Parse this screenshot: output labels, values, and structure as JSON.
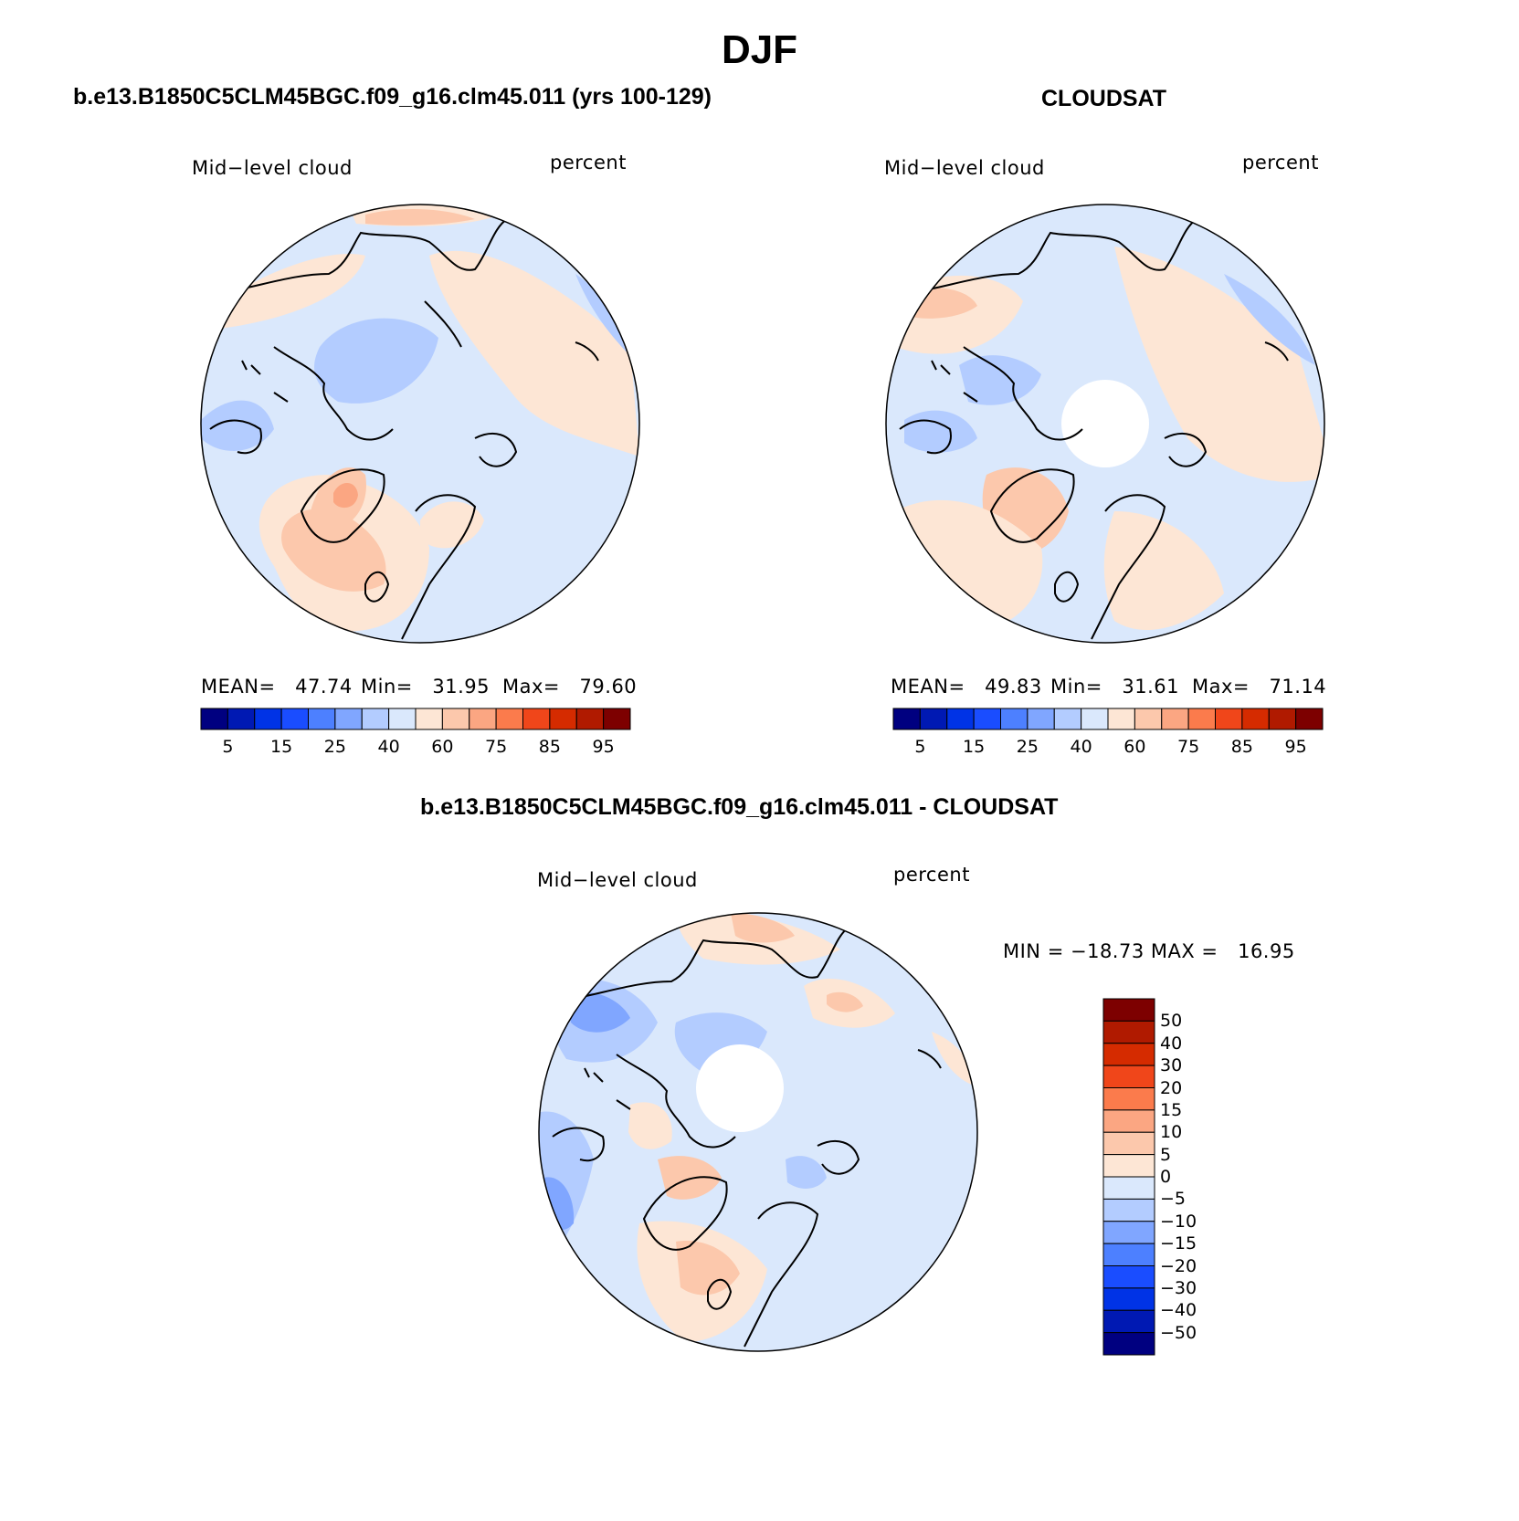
{
  "main_title": "DJF",
  "palettes": {
    "abs": [
      "#000080",
      "#0019b3",
      "#0033e6",
      "#1a4dff",
      "#4d80ff",
      "#80a6ff",
      "#b3ccff",
      "#dae8fc",
      "#fde6d5",
      "#fcc8ac",
      "#fba682",
      "#fb7b4c",
      "#f0461a",
      "#d52b00",
      "#b01a00",
      "#7d0000"
    ],
    "diff": [
      "#7d0000",
      "#b01a00",
      "#d52b00",
      "#f0461a",
      "#fb7b4c",
      "#fba682",
      "#fcc8ac",
      "#fde6d5",
      "#dae8fc",
      "#b3ccff",
      "#80a6ff",
      "#4d80ff",
      "#1a4dff",
      "#0033e6",
      "#0019b3",
      "#000080"
    ]
  },
  "panels": {
    "model": {
      "header": "b.e13.B1850C5CLM45BGC.f09_g16.clm45.011 (yrs 100-129)",
      "variable": "Mid−level cloud",
      "units": "percent",
      "stats": {
        "mean_label": "MEAN=",
        "mean": "47.74",
        "min_label": "Min=",
        "min": "31.95",
        "max_label": "Max=",
        "max": "79.60"
      },
      "colorbar_ticks": [
        "5",
        "15",
        "25",
        "40",
        "60",
        "75",
        "85",
        "95"
      ]
    },
    "obs": {
      "header": "CLOUDSAT",
      "variable": "Mid−level cloud",
      "units": "percent",
      "stats": {
        "mean_label": "MEAN=",
        "mean": "49.83",
        "min_label": "Min=",
        "min": "31.61",
        "max_label": "Max=",
        "max": "71.14"
      },
      "colorbar_ticks": [
        "5",
        "15",
        "25",
        "40",
        "60",
        "75",
        "85",
        "95"
      ]
    },
    "diff": {
      "header": "b.e13.B1850C5CLM45BGC.f09_g16.clm45.011 - CLOUDSAT",
      "variable": "Mid−level cloud",
      "units": "percent",
      "stats": {
        "min_label": "MIN =",
        "min": "−18.73",
        "max_label": "MAX =",
        "max": "16.95"
      },
      "colorbar_ticks": [
        "50",
        "40",
        "30",
        "20",
        "15",
        "10",
        "5",
        "0",
        "−5",
        "−10",
        "−15",
        "−20",
        "−30",
        "−40",
        "−50"
      ]
    }
  }
}
